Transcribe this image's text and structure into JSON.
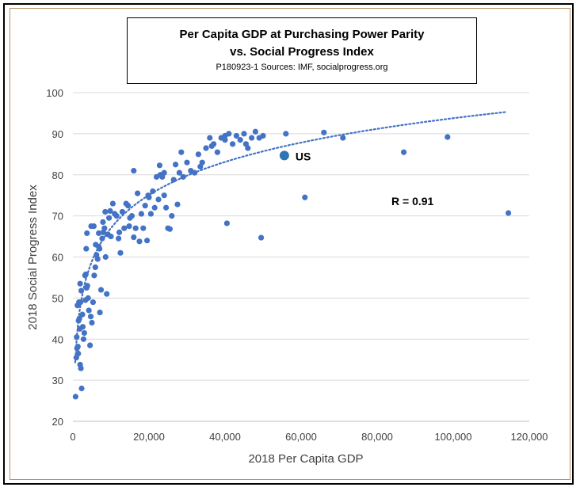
{
  "chart_data": {
    "type": "scatter",
    "title_lines": [
      "Per Capita GDP at Purchasing Power Parity",
      "vs. Social Progress Index"
    ],
    "subtitle": "P180923-1 Sources: IMF, socialprogress.org",
    "xlabel": "2018 Per Capita GDP",
    "ylabel": "2018 Social Progress Index",
    "xlim": [
      0,
      120000
    ],
    "ylim": [
      20,
      100
    ],
    "x_ticks": [
      0,
      20000,
      40000,
      60000,
      80000,
      100000,
      120000
    ],
    "x_tick_labels": [
      "0",
      "20,000",
      "40,000",
      "60,000",
      "80,000",
      "100,000",
      "120,000"
    ],
    "y_ticks": [
      20,
      30,
      40,
      50,
      60,
      70,
      80,
      90,
      100
    ],
    "y_tick_labels": [
      "20",
      "30",
      "40",
      "50",
      "60",
      "70",
      "80",
      "90",
      "100"
    ],
    "grid": "horizontal",
    "point_color": "#4472c4",
    "highlight_color": "#2e75b6",
    "trendline": {
      "type": "logarithmic",
      "a": 11.62,
      "b": -40.0
    },
    "annotation_r": "R = 0.91",
    "highlight": {
      "label": "US",
      "x": 55600,
      "y": 84.7
    },
    "points": [
      [
        700,
        26.0
      ],
      [
        900,
        35.5
      ],
      [
        1100,
        37.8
      ],
      [
        1300,
        38.2
      ],
      [
        1500,
        44.5
      ],
      [
        1700,
        45.0
      ],
      [
        1900,
        33.8
      ],
      [
        2100,
        32.9
      ],
      [
        2300,
        28.0
      ],
      [
        1800,
        42.5
      ],
      [
        1200,
        48.2
      ],
      [
        1600,
        49.0
      ],
      [
        1900,
        53.5
      ],
      [
        2200,
        51.8
      ],
      [
        2500,
        46.0
      ],
      [
        2800,
        40.0
      ],
      [
        3000,
        41.5
      ],
      [
        3200,
        55.5
      ],
      [
        3400,
        55.8
      ],
      [
        3600,
        52.5
      ],
      [
        3800,
        53.0
      ],
      [
        4000,
        50.0
      ],
      [
        4200,
        47.0
      ],
      [
        4500,
        38.5
      ],
      [
        4700,
        45.5
      ],
      [
        5000,
        44.0
      ],
      [
        5300,
        49.0
      ],
      [
        5600,
        55.5
      ],
      [
        5900,
        57.5
      ],
      [
        6200,
        60.5
      ],
      [
        6500,
        59.5
      ],
      [
        6800,
        62.5
      ],
      [
        7100,
        46.5
      ],
      [
        7400,
        52.0
      ],
      [
        7700,
        64.5
      ],
      [
        8000,
        66.0
      ],
      [
        8300,
        67.0
      ],
      [
        8600,
        60.0
      ],
      [
        8900,
        51.0
      ],
      [
        9200,
        65.5
      ],
      [
        3500,
        62.0
      ],
      [
        3700,
        65.8
      ],
      [
        4800,
        67.5
      ],
      [
        5500,
        67.5
      ],
      [
        6000,
        63.0
      ],
      [
        7000,
        62.0
      ],
      [
        8500,
        71.0
      ],
      [
        9500,
        69.5
      ],
      [
        10000,
        65.0
      ],
      [
        10500,
        73.0
      ],
      [
        11000,
        70.5
      ],
      [
        11500,
        70.0
      ],
      [
        12000,
        64.5
      ],
      [
        12500,
        61.0
      ],
      [
        13000,
        71.0
      ],
      [
        13500,
        67.0
      ],
      [
        14000,
        73.0
      ],
      [
        14500,
        72.5
      ],
      [
        15000,
        69.5
      ],
      [
        15500,
        70.0
      ],
      [
        16000,
        64.8
      ],
      [
        16500,
        67.0
      ],
      [
        17000,
        75.5
      ],
      [
        17500,
        63.8
      ],
      [
        18000,
        70.5
      ],
      [
        18500,
        67.0
      ],
      [
        19000,
        72.5
      ],
      [
        19500,
        64.0
      ],
      [
        20000,
        74.5
      ],
      [
        20500,
        70.5
      ],
      [
        21000,
        76.0
      ],
      [
        21500,
        72.0
      ],
      [
        22000,
        79.5
      ],
      [
        22500,
        74.0
      ],
      [
        23000,
        80.0
      ],
      [
        23500,
        79.5
      ],
      [
        24000,
        75.0
      ],
      [
        24500,
        72.0
      ],
      [
        25000,
        67.0
      ],
      [
        25500,
        66.8
      ],
      [
        26000,
        70.0
      ],
      [
        26500,
        78.8
      ],
      [
        27000,
        82.5
      ],
      [
        27500,
        72.8
      ],
      [
        28000,
        80.5
      ],
      [
        28500,
        85.5
      ],
      [
        29000,
        79.5
      ],
      [
        30000,
        83.0
      ],
      [
        31000,
        81.0
      ],
      [
        32000,
        80.5
      ],
      [
        33000,
        85.0
      ],
      [
        34000,
        83.0
      ],
      [
        35000,
        86.5
      ],
      [
        36000,
        89.0
      ],
      [
        37000,
        87.5
      ],
      [
        38000,
        85.5
      ],
      [
        39000,
        89.0
      ],
      [
        40000,
        88.5
      ],
      [
        41000,
        90.0
      ],
      [
        42000,
        87.5
      ],
      [
        43000,
        89.5
      ],
      [
        44000,
        88.5
      ],
      [
        45000,
        90.0
      ],
      [
        46000,
        86.5
      ],
      [
        47000,
        89.0
      ],
      [
        48000,
        90.5
      ],
      [
        49000,
        89.0
      ],
      [
        50000,
        89.5
      ],
      [
        16000,
        81.0
      ],
      [
        24000,
        80.5
      ],
      [
        40000,
        89.5
      ],
      [
        45500,
        87.5
      ],
      [
        1000,
        40.5
      ],
      [
        1400,
        36.5
      ],
      [
        2600,
        43.0
      ],
      [
        3300,
        49.5
      ],
      [
        2000,
        49.0
      ],
      [
        40500,
        68.2
      ],
      [
        49500,
        64.7
      ],
      [
        61000,
        74.5
      ],
      [
        56000,
        90.0
      ],
      [
        66000,
        90.3
      ],
      [
        71000,
        89.0
      ],
      [
        87000,
        85.5
      ],
      [
        98500,
        89.2
      ],
      [
        114500,
        70.7
      ],
      [
        9800,
        71.2
      ],
      [
        12200,
        66.0
      ],
      [
        14800,
        67.5
      ],
      [
        6800,
        65.8
      ],
      [
        7900,
        68.5
      ],
      [
        19800,
        75.0
      ],
      [
        22800,
        82.3
      ],
      [
        33500,
        82.0
      ],
      [
        36500,
        87.0
      ]
    ]
  }
}
